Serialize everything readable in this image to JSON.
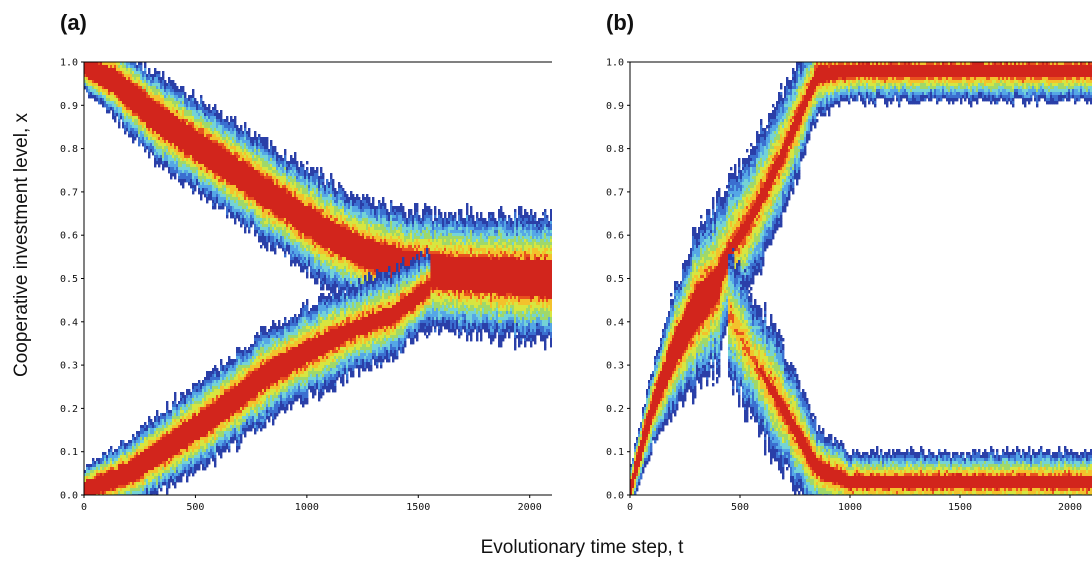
{
  "figure": {
    "xlabel": "Evolutionary time step, t",
    "ylabel": "Cooperative investment level, x"
  },
  "colors": {
    "background": "#ffffff",
    "density_scale": [
      "#2a3fa8",
      "#3b6fd0",
      "#55a7e6",
      "#74d3d6",
      "#9fd86a",
      "#d7e640",
      "#f3c22c",
      "#e8521e",
      "#d2251c"
    ]
  },
  "chart_data": [
    {
      "type": "heatmap",
      "panel_label": "(a)",
      "xlim": [
        0,
        2100
      ],
      "ylim": [
        0,
        1
      ],
      "xticks": [
        0,
        500,
        1000,
        1500,
        2000
      ],
      "xtick_labels": [
        "0",
        "500",
        "1000",
        "1500",
        "2000"
      ],
      "yticks": [
        0,
        0.1,
        0.2,
        0.3,
        0.4,
        0.5,
        0.6,
        0.7,
        0.8,
        0.9,
        1.0
      ],
      "ytick_labels": [
        "0.0",
        "0.1",
        "0.2",
        "0.3",
        "0.4",
        "0.5",
        "0.6",
        "0.7",
        "0.8",
        "0.9",
        "1.0"
      ],
      "grid": false,
      "branches": [
        {
          "t": [
            0,
            150,
            300,
            500,
            700,
            900,
            1100,
            1300,
            1500,
            1700,
            2100
          ],
          "x": [
            0.99,
            0.95,
            0.88,
            0.81,
            0.74,
            0.67,
            0.6,
            0.55,
            0.52,
            0.51,
            0.5
          ],
          "core_width": [
            0.02,
            0.03,
            0.035,
            0.035,
            0.035,
            0.035,
            0.035,
            0.035,
            0.04,
            0.04,
            0.045
          ],
          "spread": [
            0.03,
            0.05,
            0.06,
            0.065,
            0.07,
            0.075,
            0.08,
            0.08,
            0.085,
            0.09,
            0.09
          ]
        },
        {
          "t": [
            0,
            200,
            400,
            600,
            800,
            1000,
            1200,
            1400,
            1550
          ],
          "x": [
            0.01,
            0.05,
            0.12,
            0.19,
            0.27,
            0.33,
            0.38,
            0.42,
            0.48
          ],
          "core_width": [
            0.02,
            0.025,
            0.03,
            0.03,
            0.03,
            0.025,
            0.02,
            0.02,
            0.02
          ],
          "spread": [
            0.03,
            0.05,
            0.06,
            0.065,
            0.07,
            0.075,
            0.08,
            0.07,
            0.06
          ]
        }
      ]
    },
    {
      "type": "heatmap",
      "panel_label": "(b)",
      "xlim": [
        0,
        2100
      ],
      "ylim": [
        0,
        1
      ],
      "xticks": [
        0,
        500,
        1000,
        1500,
        2000
      ],
      "xtick_labels": [
        "0",
        "500",
        "1000",
        "1500",
        "2000"
      ],
      "yticks": [
        0,
        0.1,
        0.2,
        0.3,
        0.4,
        0.5,
        0.6,
        0.7,
        0.8,
        0.9,
        1.0
      ],
      "ytick_labels": [
        "0.0",
        "0.1",
        "0.2",
        "0.3",
        "0.4",
        "0.5",
        "0.6",
        "0.7",
        "0.8",
        "0.9",
        "1.0"
      ],
      "grid": false,
      "branches": [
        {
          "t": [
            0,
            100,
            200,
            300,
            400,
            450,
            550,
            650,
            750,
            850,
            1000,
            1500,
            2100
          ],
          "x": [
            0.01,
            0.2,
            0.33,
            0.43,
            0.49,
            0.56,
            0.64,
            0.74,
            0.85,
            0.97,
            0.98,
            0.98,
            0.98
          ],
          "core_width": [
            0.02,
            0.025,
            0.04,
            0.05,
            0.04,
            0.02,
            0.02,
            0.02,
            0.02,
            0.02,
            0.015,
            0.015,
            0.015
          ],
          "spread": [
            0.03,
            0.06,
            0.09,
            0.12,
            0.14,
            0.13,
            0.13,
            0.12,
            0.1,
            0.07,
            0.05,
            0.05,
            0.05
          ]
        },
        {
          "t": [
            450,
            550,
            650,
            750,
            850,
            1000,
            1500,
            2100
          ],
          "x": [
            0.42,
            0.32,
            0.24,
            0.15,
            0.06,
            0.03,
            0.03,
            0.03
          ],
          "core_width": [
            0.0,
            0.0,
            0.015,
            0.02,
            0.02,
            0.015,
            0.015,
            0.015
          ],
          "spread": [
            0.13,
            0.13,
            0.12,
            0.1,
            0.07,
            0.05,
            0.05,
            0.05
          ]
        }
      ]
    }
  ]
}
